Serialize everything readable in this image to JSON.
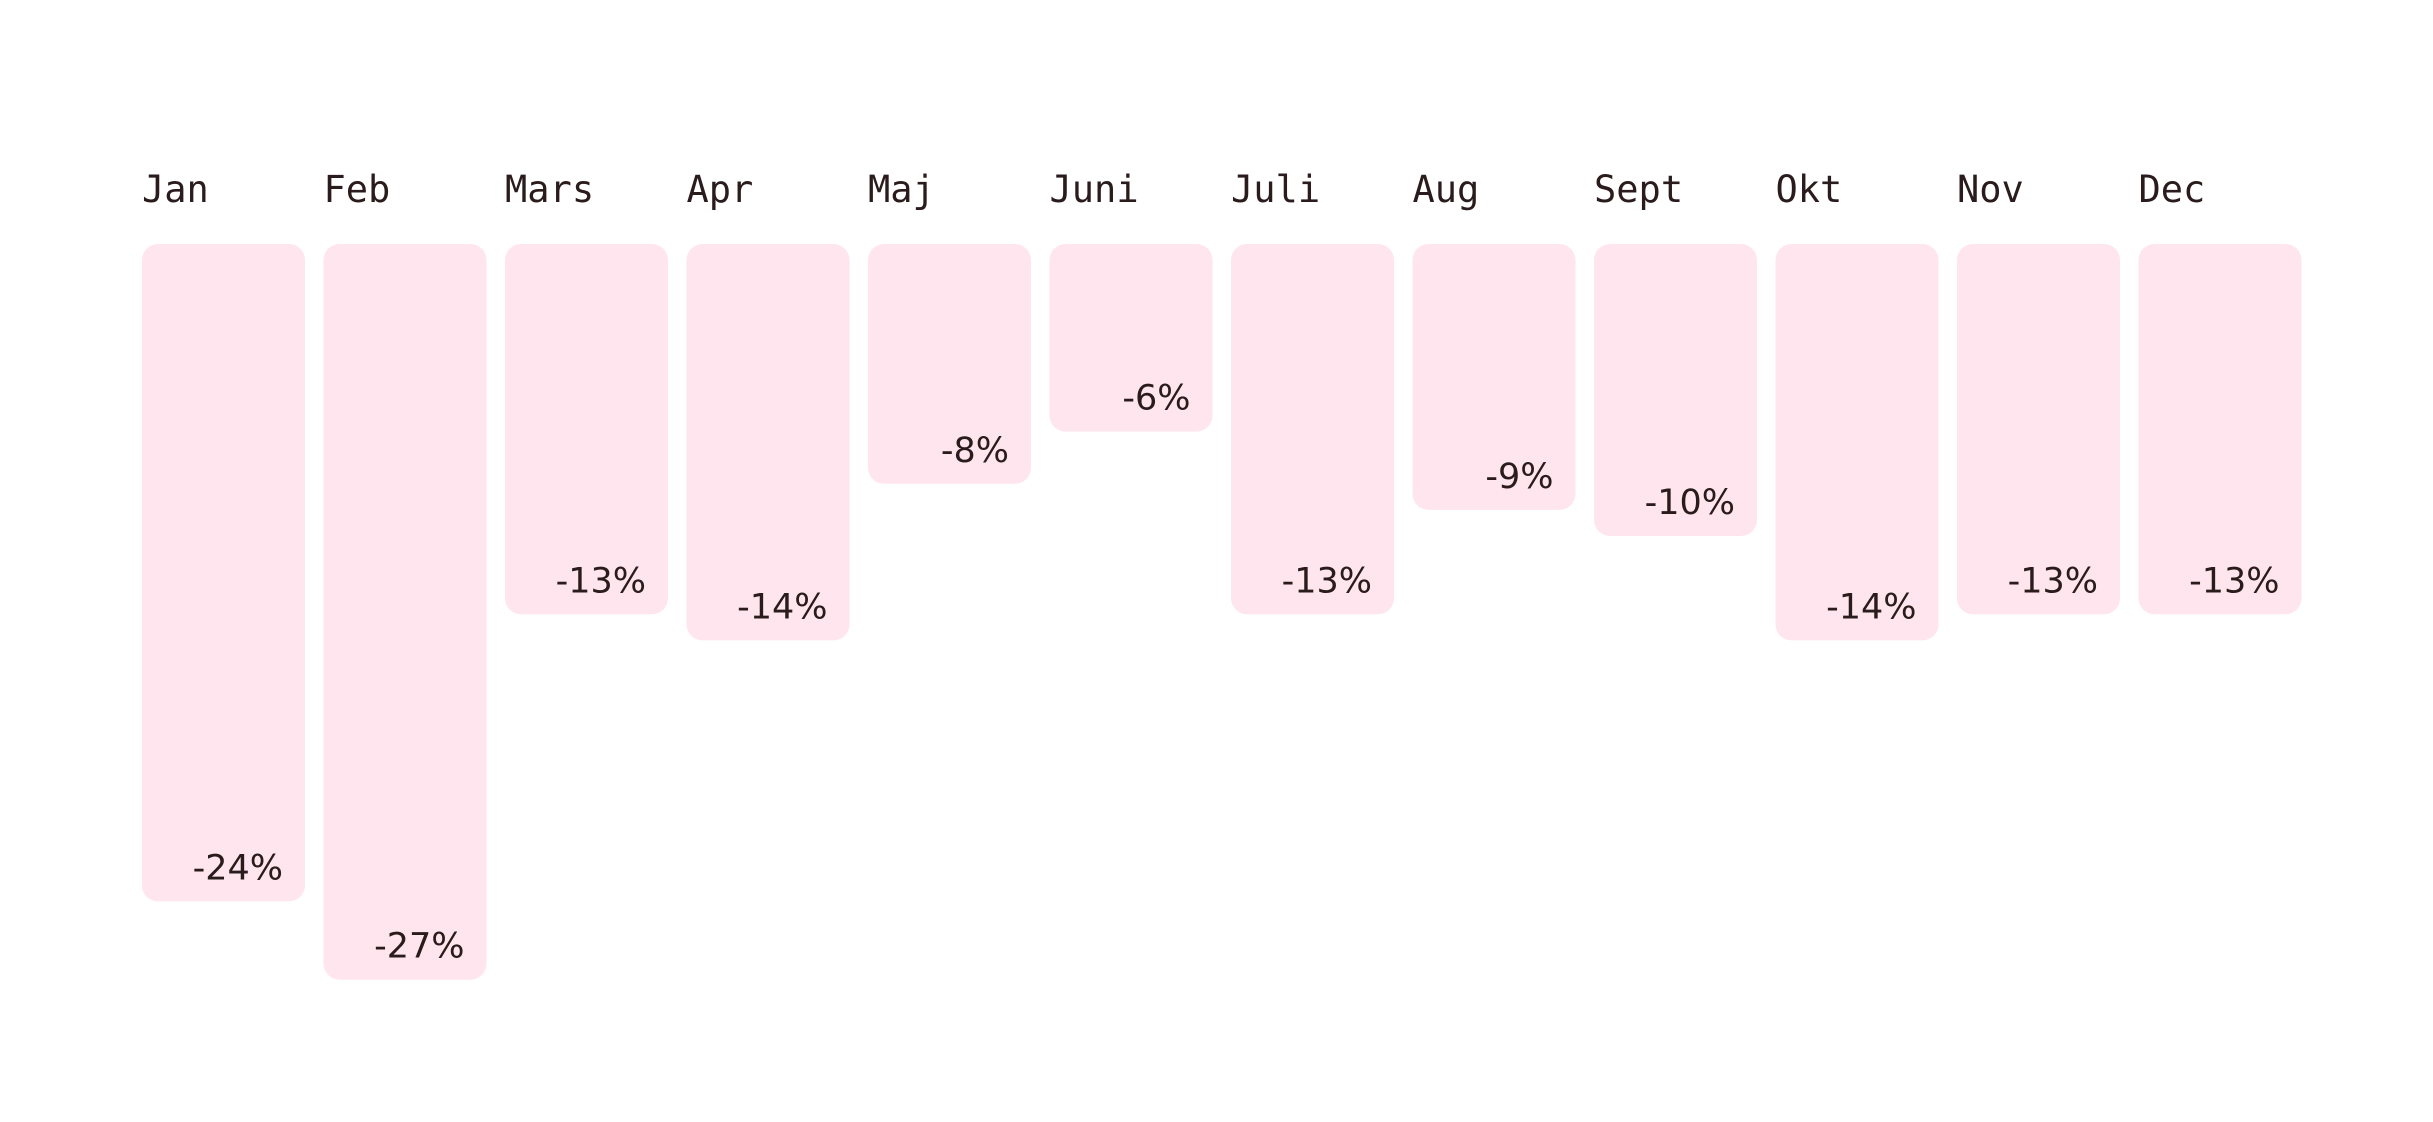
{
  "chart_data": {
    "type": "bar",
    "orientation": "downward",
    "categories": [
      "Jan",
      "Feb",
      "Mars",
      "Apr",
      "Maj",
      "Juni",
      "Juli",
      "Aug",
      "Sept",
      "Okt",
      "Nov",
      "Dec"
    ],
    "values": [
      -24,
      -27,
      -13,
      -14,
      -8,
      -6,
      -13,
      -9,
      -10,
      -14,
      -13,
      -13
    ],
    "value_labels": [
      "-24%",
      "-27%",
      "-13%",
      "-14%",
      "-8%",
      "-6%",
      "-13%",
      "-9%",
      "-10%",
      "-14%",
      "-13%",
      "-13%"
    ],
    "unit": "%",
    "bar_color": "#ffe6ee",
    "text_color": "#2a1c1c",
    "legend": "none",
    "grid": false
  }
}
